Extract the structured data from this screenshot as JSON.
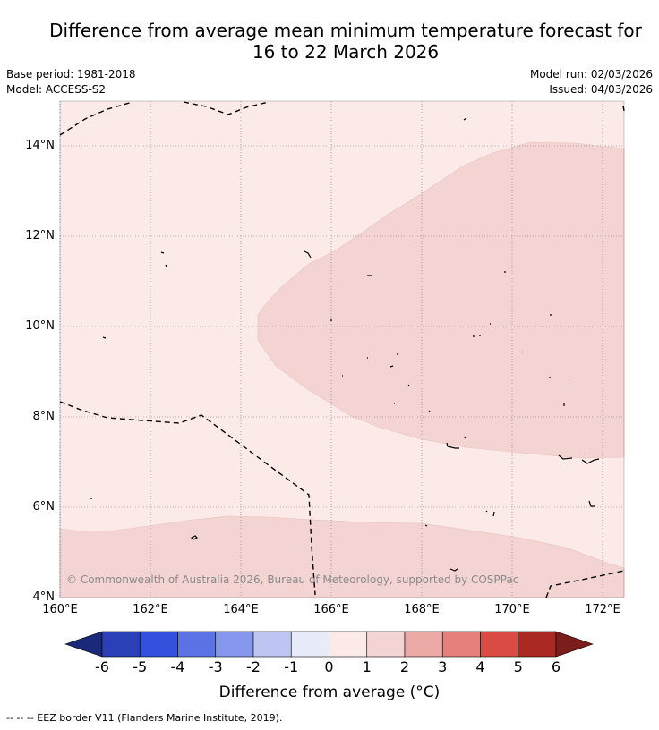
{
  "title_line1": "Difference from average mean minimum temperature forecast for",
  "title_line2": "16 to 22 March 2026",
  "base_period": "Base period: 1981-2018",
  "model": "Model: ACCESS-S2",
  "model_run": "Model run: 02/03/2026",
  "issued": "Issued: 04/03/2026",
  "map": {
    "lat_labels": [
      "14°N",
      "12°N",
      "10°N",
      "8°N",
      "6°N",
      "4°N"
    ],
    "lon_labels": [
      "160°E",
      "162°E",
      "164°E",
      "166°E",
      "168°E",
      "170°E",
      "172°E"
    ],
    "copyright": "© Commonwealth of Australia 2026, Bureau of Meteorology, supported by COSPPac",
    "fill_colors": {
      "zero_to_one": "#fbeae8",
      "one_to_two": "#f4d4d2"
    }
  },
  "colorbar": {
    "title": "Difference from average (°C)",
    "labels": [
      "-6",
      "-5",
      "-4",
      "-3",
      "-2",
      "-1",
      "0",
      "1",
      "2",
      "3",
      "4",
      "5",
      "6"
    ],
    "colors": [
      "#1b2a78",
      "#2b3fb6",
      "#3451de",
      "#5a72e4",
      "#8597ec",
      "#bec5f2",
      "#e8ebfa",
      "#fbeae8",
      "#f4d4d2",
      "#ecaaa7",
      "#e5807c",
      "#d94c44",
      "#aa2a23",
      "#7a1d1b"
    ]
  },
  "footer": "--  --  -- EEZ border V11 (Flanders Marine Institute, 2019)."
}
